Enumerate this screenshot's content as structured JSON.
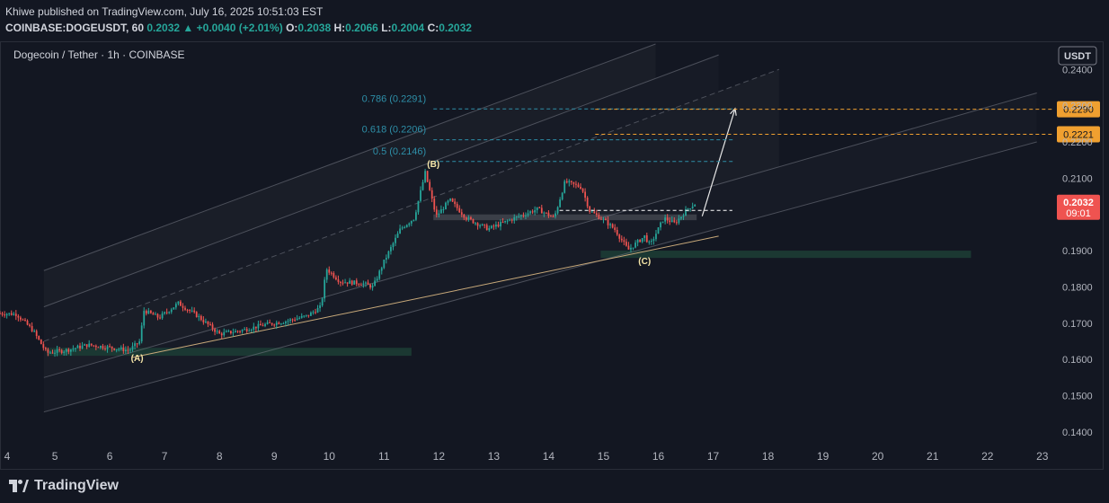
{
  "header": {
    "published": "Khiwe published on TradingView.com, July 16, 2025 10:51:03 EST",
    "symbol": "COINBASE:DOGEUSDT, 60",
    "price": "0.2032",
    "change": "+0.0040 (+2.01%)",
    "o_label": "O:",
    "o_value": "0.2038",
    "h_label": "H:",
    "h_value": "0.2066",
    "l_label": "L:",
    "l_value": "0.2004",
    "c_label": "C:",
    "c_value": "0.2032"
  },
  "footer": {
    "brand": "TradingView"
  },
  "colors": {
    "background": "#131722",
    "up": "#26a69a",
    "down": "#ef5350",
    "fib": "#2e8fa8",
    "orange": "#f0a030",
    "zone": "#1b3a34"
  },
  "chart_data": {
    "type": "candlestick",
    "title": "Dogecoin / Tether · 1h · COINBASE",
    "currency_label": "USDT",
    "ylim": [
      0.136,
      0.2475
    ],
    "y_ticks": [
      "0.1400",
      "0.1500",
      "0.1600",
      "0.1700",
      "0.1800",
      "0.1900",
      "0.2000",
      "0.2100",
      "0.2200",
      "0.2300",
      "0.2400"
    ],
    "x_ticks": [
      "4",
      "5",
      "6",
      "7",
      "8",
      "9",
      "10",
      "11",
      "12",
      "13",
      "14",
      "15",
      "16",
      "17",
      "18",
      "19",
      "20",
      "21",
      "22",
      "23"
    ],
    "xlim_days": [
      4.0,
      23.2
    ],
    "price_path": [
      [
        4.0,
        0.1727
      ],
      [
        4.3,
        0.1725
      ],
      [
        4.6,
        0.168
      ],
      [
        4.85,
        0.1618
      ],
      [
        5.2,
        0.1625
      ],
      [
        5.6,
        0.164
      ],
      [
        6.0,
        0.1633
      ],
      [
        6.35,
        0.1625
      ],
      [
        6.55,
        0.165
      ],
      [
        6.62,
        0.1735
      ],
      [
        6.9,
        0.1715
      ],
      [
        7.25,
        0.1755
      ],
      [
        7.6,
        0.172
      ],
      [
        8.0,
        0.167
      ],
      [
        8.4,
        0.168
      ],
      [
        8.8,
        0.1695
      ],
      [
        9.2,
        0.1705
      ],
      [
        9.6,
        0.172
      ],
      [
        9.85,
        0.1745
      ],
      [
        9.95,
        0.185
      ],
      [
        10.2,
        0.1815
      ],
      [
        10.6,
        0.181
      ],
      [
        10.8,
        0.18
      ],
      [
        11.0,
        0.187
      ],
      [
        11.3,
        0.196
      ],
      [
        11.55,
        0.199
      ],
      [
        11.75,
        0.2115
      ],
      [
        11.95,
        0.1995
      ],
      [
        12.2,
        0.204
      ],
      [
        12.5,
        0.199
      ],
      [
        12.9,
        0.196
      ],
      [
        13.3,
        0.1985
      ],
      [
        13.8,
        0.2015
      ],
      [
        14.1,
        0.199
      ],
      [
        14.3,
        0.209
      ],
      [
        14.6,
        0.2075
      ],
      [
        14.75,
        0.201
      ],
      [
        15.0,
        0.1985
      ],
      [
        15.2,
        0.196
      ],
      [
        15.45,
        0.1902
      ],
      [
        15.75,
        0.194
      ],
      [
        15.85,
        0.1915
      ],
      [
        16.1,
        0.199
      ],
      [
        16.3,
        0.1975
      ],
      [
        16.55,
        0.2018
      ],
      [
        16.7,
        0.2032
      ]
    ],
    "series": [
      {
        "name": "Channel upper",
        "points": [
          [
            4.8,
            0.1845
          ],
          [
            15.95,
            0.247
          ]
        ]
      },
      {
        "name": "Channel mid-upper",
        "points": [
          [
            4.8,
            0.1745
          ],
          [
            17.1,
            0.244
          ]
        ]
      },
      {
        "name": "Channel center",
        "points": [
          [
            4.8,
            0.165
          ],
          [
            18.2,
            0.24
          ]
        ]
      },
      {
        "name": "Channel mid-lower",
        "points": [
          [
            4.8,
            0.155
          ],
          [
            22.9,
            0.2335
          ]
        ]
      },
      {
        "name": "Channel lower",
        "points": [
          [
            4.8,
            0.1455
          ],
          [
            22.9,
            0.22
          ]
        ]
      },
      {
        "name": "Support trendline",
        "points": [
          [
            6.4,
            0.1605
          ],
          [
            17.1,
            0.194
          ]
        ]
      },
      {
        "name": "Projection arrow",
        "points": [
          [
            16.8,
            0.1995
          ],
          [
            17.4,
            0.2292
          ]
        ]
      }
    ],
    "zones": [
      {
        "name": "Support zone A",
        "x": [
          4.85,
          11.5
        ],
        "y": [
          0.161,
          0.1632
        ]
      },
      {
        "name": "Support zone C",
        "x": [
          14.95,
          21.7
        ],
        "y": [
          0.188,
          0.19
        ]
      },
      {
        "name": "Resistance zone",
        "x": [
          11.9,
          16.7
        ],
        "y": [
          0.1984,
          0.2
        ]
      }
    ],
    "fib_levels": [
      {
        "label": "0.786 (0.2291)",
        "value": 0.2291
      },
      {
        "label": "0.618 (0.2206)",
        "value": 0.2206
      },
      {
        "label": "0.5 (0.2146)",
        "value": 0.2146
      }
    ],
    "fib_x": [
      11.9,
      17.4
    ],
    "horizontal_lines": [
      {
        "label": "0.2290",
        "value": 0.229,
        "x_start": 14.85
      },
      {
        "label": "0.2221",
        "value": 0.2221,
        "x_start": 14.85
      }
    ],
    "current_price_line": {
      "value": 0.2011,
      "x": [
        14.2,
        17.35
      ]
    },
    "current_price": {
      "label": "0.2032",
      "countdown": "09:01",
      "value": 0.2032
    },
    "annotations": [
      {
        "text": "(A)",
        "x": 6.5,
        "y": 0.1595
      },
      {
        "text": "(B)",
        "x": 11.9,
        "y": 0.213
      },
      {
        "text": "(C)",
        "x": 15.75,
        "y": 0.1863
      }
    ]
  }
}
